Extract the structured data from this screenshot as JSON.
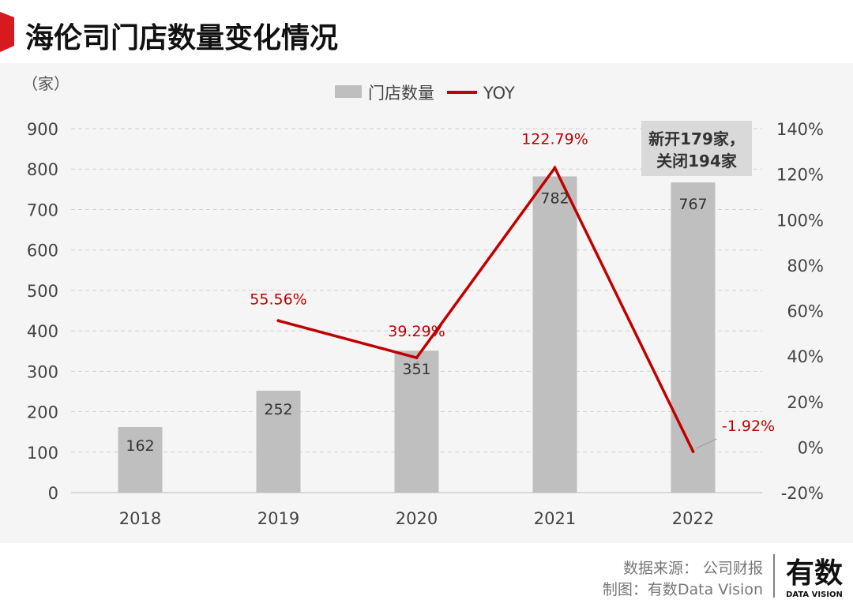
{
  "title": "海伦司门店数量变化情况",
  "footer": {
    "source": "数据来源： 公司财报",
    "maker": "制图：有数Data Vision",
    "logo_text": "有数",
    "logo_sub": "DATA VISION"
  },
  "colors": {
    "accent": "#d71a1f",
    "bar": "#bfbfbf",
    "line": "#c00000",
    "panel": "#f5f5f5"
  },
  "chart_data": {
    "type": "bar+line",
    "categories": [
      "2018",
      "2019",
      "2020",
      "2021",
      "2022"
    ],
    "series": [
      {
        "name": "门店数量",
        "type": "bar",
        "axis": "left",
        "values": [
          162,
          252,
          351,
          782,
          767
        ],
        "labels": [
          "162",
          "252",
          "351",
          "782",
          "767"
        ]
      },
      {
        "name": "YOY",
        "type": "line",
        "axis": "right",
        "values": [
          null,
          55.56,
          39.29,
          122.79,
          -1.92
        ],
        "labels": [
          "",
          "55.56%",
          "39.29%",
          "122.79%",
          "-1.92%"
        ]
      }
    ],
    "left_axis": {
      "unit": "（家）",
      "range": [
        0,
        900
      ],
      "ticks": [
        "0",
        "100",
        "200",
        "300",
        "400",
        "500",
        "600",
        "700",
        "800",
        "900"
      ]
    },
    "right_axis": {
      "range": [
        -20,
        140
      ],
      "ticks": [
        "-20%",
        "0%",
        "20%",
        "40%",
        "60%",
        "80%",
        "100%",
        "120%",
        "140%"
      ]
    },
    "legend_position": "top-center",
    "grid": true,
    "annotation": {
      "line1": "新开179家，",
      "line2": "关闭194家"
    }
  }
}
